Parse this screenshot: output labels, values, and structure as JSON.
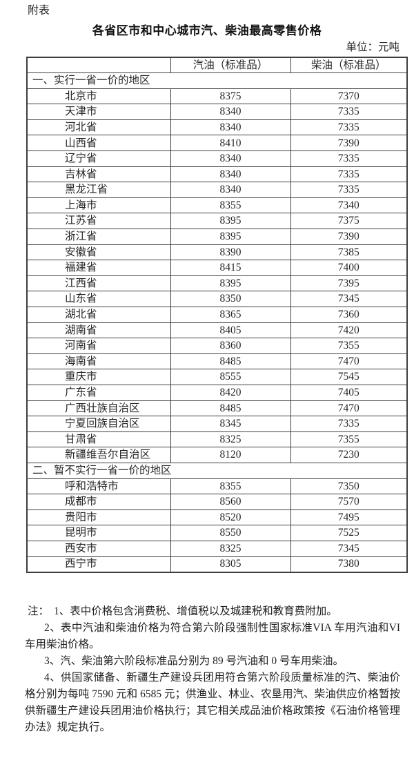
{
  "page": {
    "attachment_label": "附表",
    "title": "各省区市和中心城市汽、柴油最高零售价格",
    "unit_label": "单位：元吨"
  },
  "table": {
    "columns": [
      "",
      "汽油（标准品）",
      "柴油（标准品）"
    ],
    "sections": [
      {
        "title": "一、实行一省一价的地区",
        "rows": [
          [
            "北京市",
            "8375",
            "7370"
          ],
          [
            "天津市",
            "8340",
            "7335"
          ],
          [
            "河北省",
            "8340",
            "7335"
          ],
          [
            "山西省",
            "8410",
            "7390"
          ],
          [
            "辽宁省",
            "8340",
            "7335"
          ],
          [
            "吉林省",
            "8340",
            "7335"
          ],
          [
            "黑龙江省",
            "8340",
            "7335"
          ],
          [
            "上海市",
            "8355",
            "7340"
          ],
          [
            "江苏省",
            "8395",
            "7375"
          ],
          [
            "浙江省",
            "8395",
            "7390"
          ],
          [
            "安徽省",
            "8390",
            "7385"
          ],
          [
            "福建省",
            "8415",
            "7400"
          ],
          [
            "江西省",
            "8395",
            "7395"
          ],
          [
            "山东省",
            "8350",
            "7345"
          ],
          [
            "湖北省",
            "8365",
            "7360"
          ],
          [
            "湖南省",
            "8405",
            "7420"
          ],
          [
            "河南省",
            "8360",
            "7355"
          ],
          [
            "海南省",
            "8485",
            "7470"
          ],
          [
            "重庆市",
            "8555",
            "7545"
          ],
          [
            "广东省",
            "8420",
            "7405"
          ],
          [
            "广西壮族自治区",
            "8485",
            "7470"
          ],
          [
            "宁夏回族自治区",
            "8345",
            "7335"
          ],
          [
            "甘肃省",
            "8325",
            "7355"
          ],
          [
            "新疆维吾尔自治区",
            "8120",
            "7230"
          ]
        ]
      },
      {
        "title": "二、暂不实行一省一价的地区",
        "rows": [
          [
            "呼和浩特市",
            "8355",
            "7350"
          ],
          [
            "成都市",
            "8560",
            "7570"
          ],
          [
            "贵阳市",
            "8520",
            "7495"
          ],
          [
            "昆明市",
            "8550",
            "7525"
          ],
          [
            "西安市",
            "8325",
            "7345"
          ],
          [
            "西宁市",
            "8305",
            "7380"
          ]
        ]
      }
    ]
  },
  "notes": {
    "prefix": "注：",
    "items": [
      "1、表中价格包含消费税、增值税以及城建税和教育费附加。",
      "2、表中汽油和柴油价格为符合第六阶段强制性国家标准VIA 车用汽油和VI车用柴油价格。",
      "3、汽、柴油第六阶段标准品分别为 89 号汽油和 0 号车用柴油。",
      "4、供国家储备、新疆生产建设兵团用符合第六阶段质量标准的汽、柴油价格分别为每吨 7590 元和 6585 元；供渔业、林业、农垦用汽、柴油供应价格暂按供新疆生产建设兵团用油价格执行；其它相关成品油价格政策按《石油价格管理办法》规定执行。"
    ]
  }
}
